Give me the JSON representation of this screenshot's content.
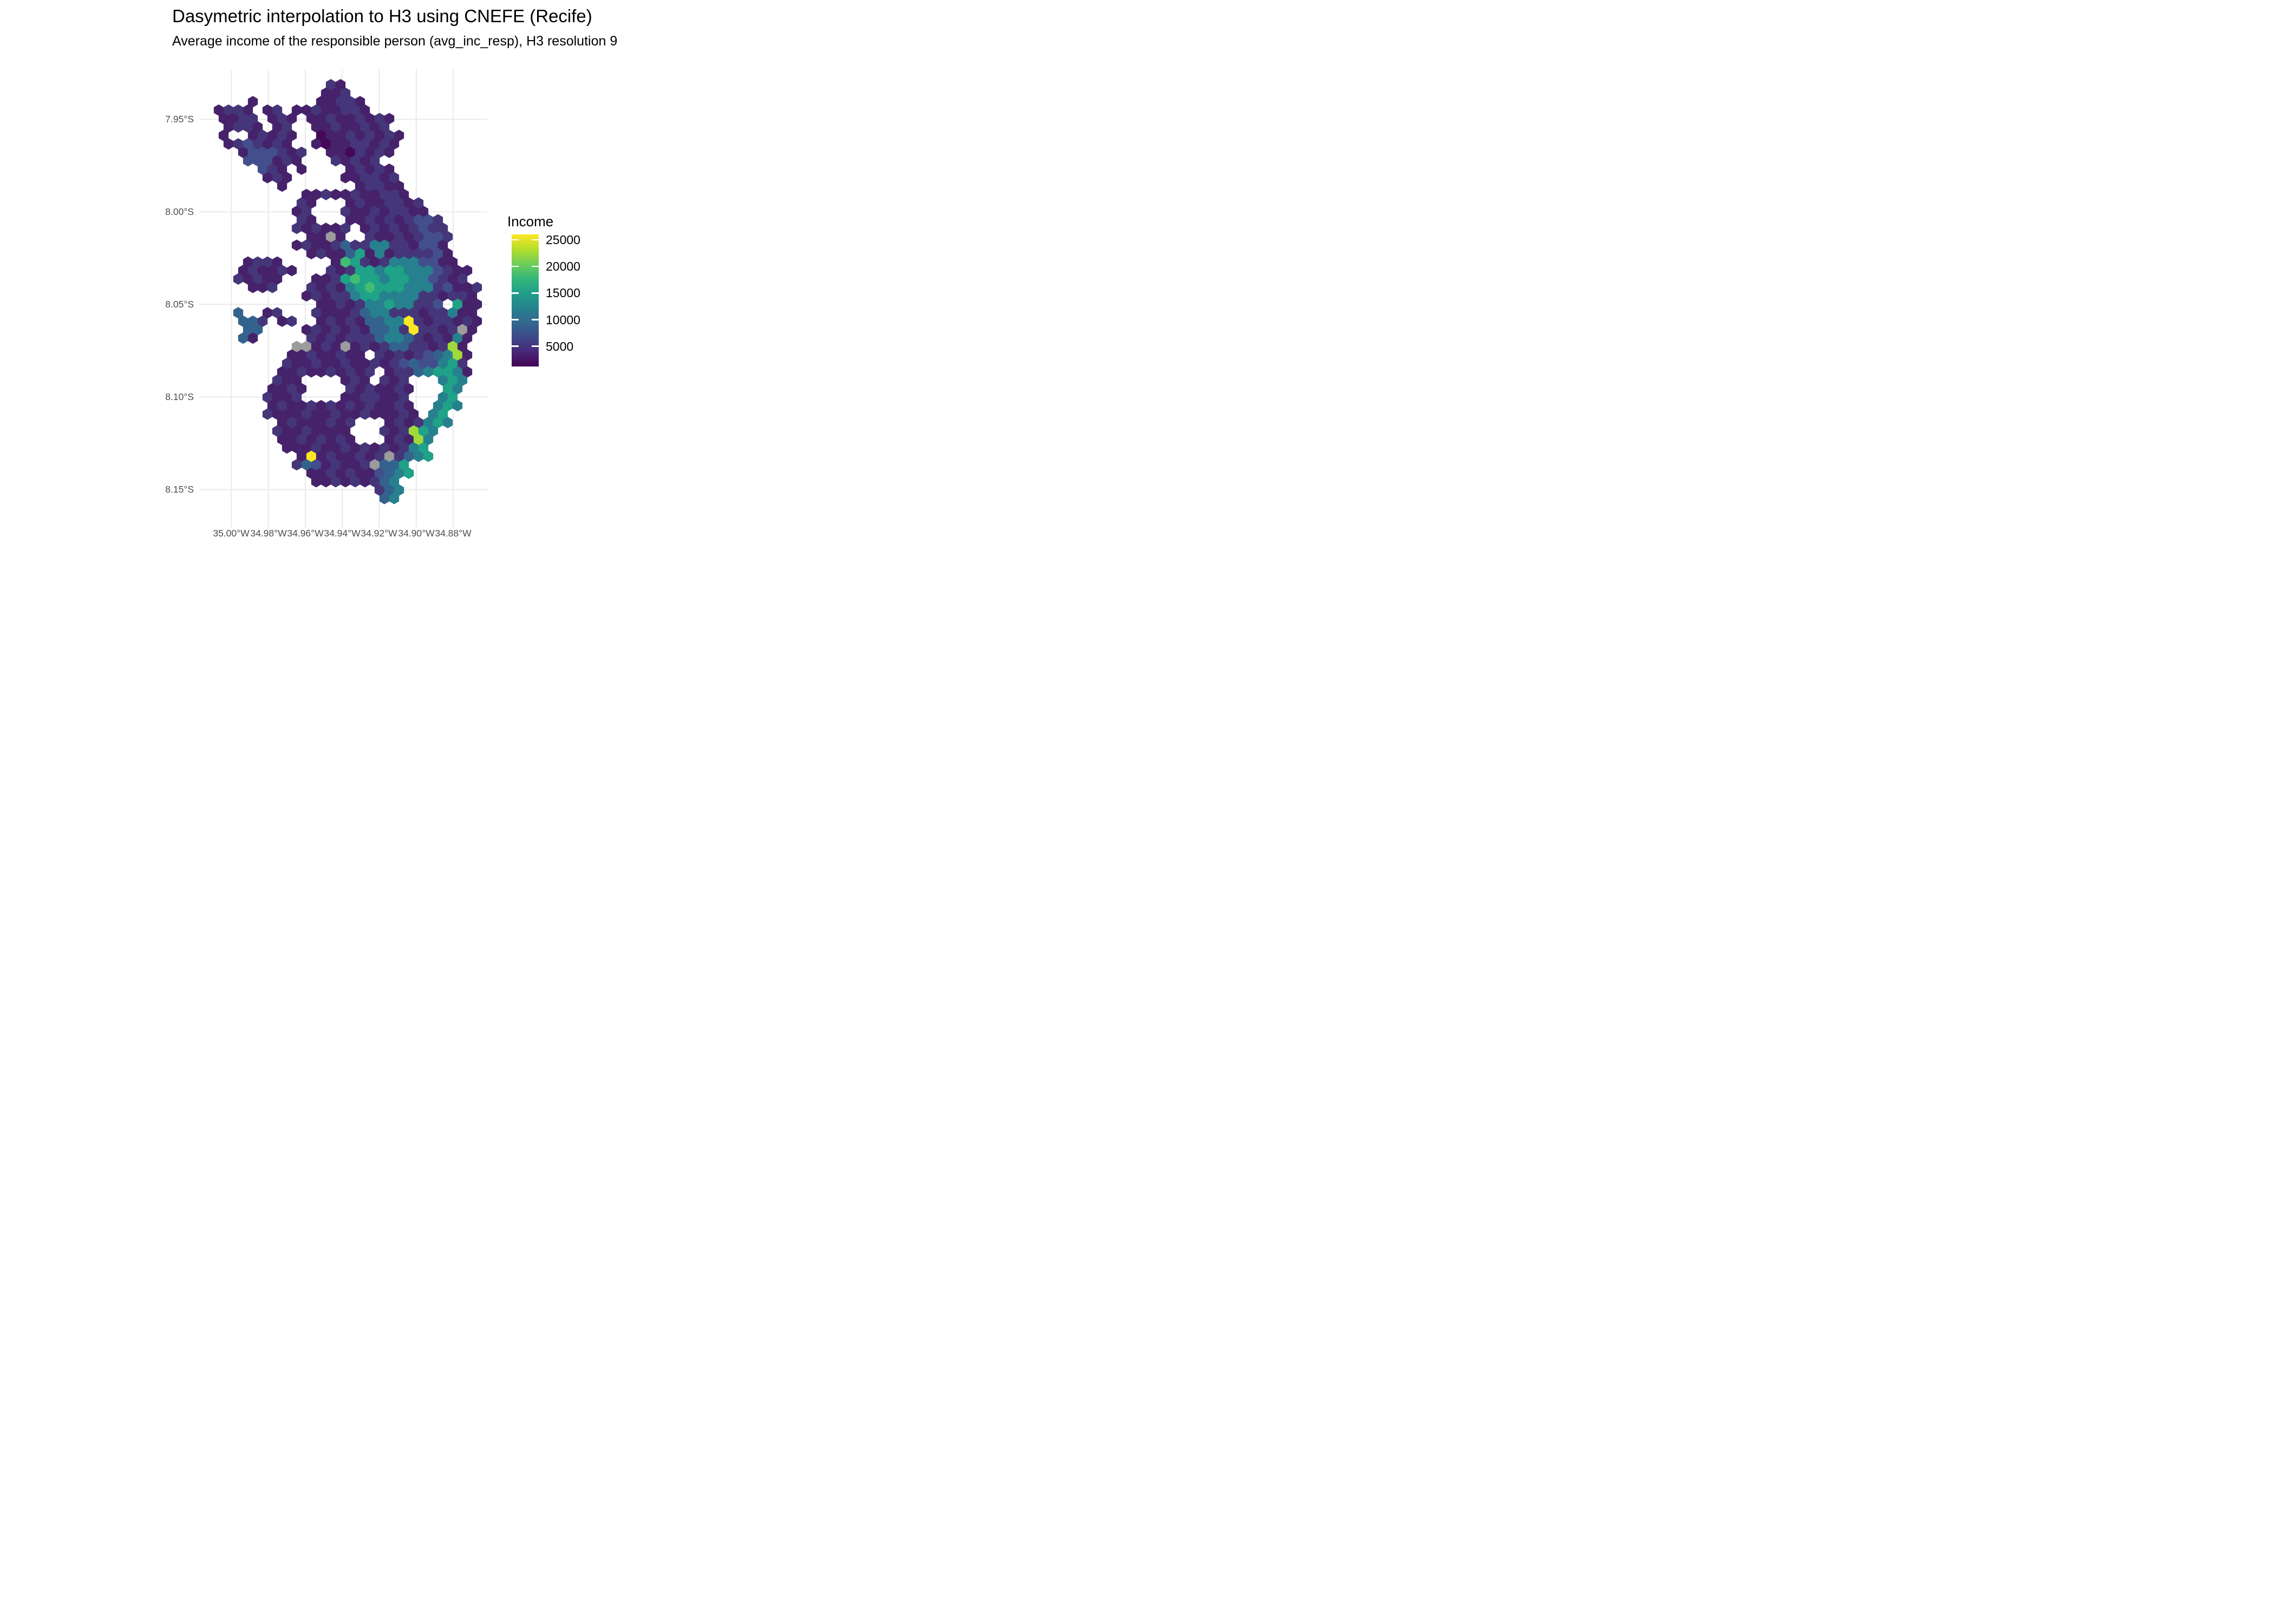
{
  "chart_data": {
    "type": "heatmap",
    "variant": "h3-hexbin-choropleth-map",
    "title": "Dasymetric interpolation to H3 using CNEFE (Recife)",
    "subtitle": "Average income of the responsible person (avg_inc_resp), H3 resolution 9",
    "x_ticks": [
      "35.00°W",
      "34.98°W",
      "34.96°W",
      "34.94°W",
      "34.92°W",
      "34.90°W",
      "34.88°W"
    ],
    "y_ticks": [
      "7.95°S",
      "8.00°S",
      "8.05°S",
      "8.10°S",
      "8.15°S"
    ],
    "legend": {
      "title": "Income",
      "labels": [
        "25000",
        "20000",
        "15000",
        "10000",
        "5000"
      ],
      "values": [
        25000,
        20000,
        15000,
        10000,
        5000
      ],
      "domain": [
        1100,
        25900
      ]
    },
    "colors": {
      "gridline": "#ebebeb",
      "axis_text": "#4d4d4d",
      "background": "#ffffff",
      "na": "#9c9c9c",
      "viridis_stops": [
        "#fde725",
        "#b5de2b",
        "#6ece58",
        "#35b779",
        "#1f9e89",
        "#26828e",
        "#31688e",
        "#3e4989",
        "#482878",
        "#440154"
      ]
    },
    "palette": {
      "z": {
        "color": "#45085a",
        "income": 2200
      },
      "a": {
        "color": "#46226b",
        "income": 3200
      },
      "b": {
        "color": "#453679",
        "income": 4700
      },
      "s": {
        "color": "#424f8c",
        "income": 6300
      },
      "c": {
        "color": "#33638d",
        "income": 8200
      },
      "d": {
        "color": "#27808e",
        "income": 11000
      },
      "e": {
        "color": "#1fa287",
        "income": 14200
      },
      "f": {
        "color": "#40bd72",
        "income": 17200
      },
      "g": {
        "color": "#9fda3a",
        "income": 21000
      },
      "h": {
        "color": "#fde725",
        "income": 24800
      },
      "x": {
        "color": "#9c9c9c",
        "income": null
      }
    },
    "hex_rows": [
      "",
      "...........ba",
      "...........aab",
      "...a......aabba",
      "abba.ab.aabaabba",
      "aabb.aba.aabaababa",
      ".abba.ab..aabaabab",
      "a..ababa..zaabababa",
      ".absbaba..azaabbaba",
      "..asssbab..aazbaba",
      "...sssaba...babab",
      "....sba.a....ababa",
      ".....aba.....aabbab",
      "......a.......abbaa",
      ".........aabaabaabba",
      "........ba...abaabbab",
      "........ab...baababbaa",
      "........ba...aabababssb",
      "........babaab.abababsbb",
      ".........aaxa..baababssb",
      "........abaabcbbddbbassa",
      ".........abaaceadabbbbsa",
      "...abba.....afebabdddssaa",
      "..abaaba...babeedeedddsbaa",
      "..babaa...aabefeedeeddsbab",
      "...aab...babadefeeedddbsaab",
      ".........ababbdeeddddbbabba",
      "..........aababddeddbbs.eaa",
      "..c..ab...baaabcddbbbabbdaa",
      "..ccb.ab..ababaccddhbabbaba",
      "...cc....abababaccdbhbbabxa",
      "..ca.....bababbbcddcbabada",
      "........xxabaxababccbbabga",
      ".......aabaabaa.bababscdga",
      ".......baabaabaababscssdeb",
      "......aabaababab.abbcdeeda",
      "......baa....aba.bab...ded",
      ".....aaba....babaaba...ed",
      ".....baab....aabbaab...de",
      ".....abaababababaaba..ded",
      ".....baaabaabaabaaaba.de",
      "......abaaabab...ababded",
      "......baabaaaa...babged",
      "......aabababa...abagd",
      ".......aaabaababababde",
      "........ahabaababxbcde",
      "........bcsabaabxcce",
      ".........aababaascde",
      "..........aabababcd",
      "................bcd",
      ".................cd"
    ]
  }
}
